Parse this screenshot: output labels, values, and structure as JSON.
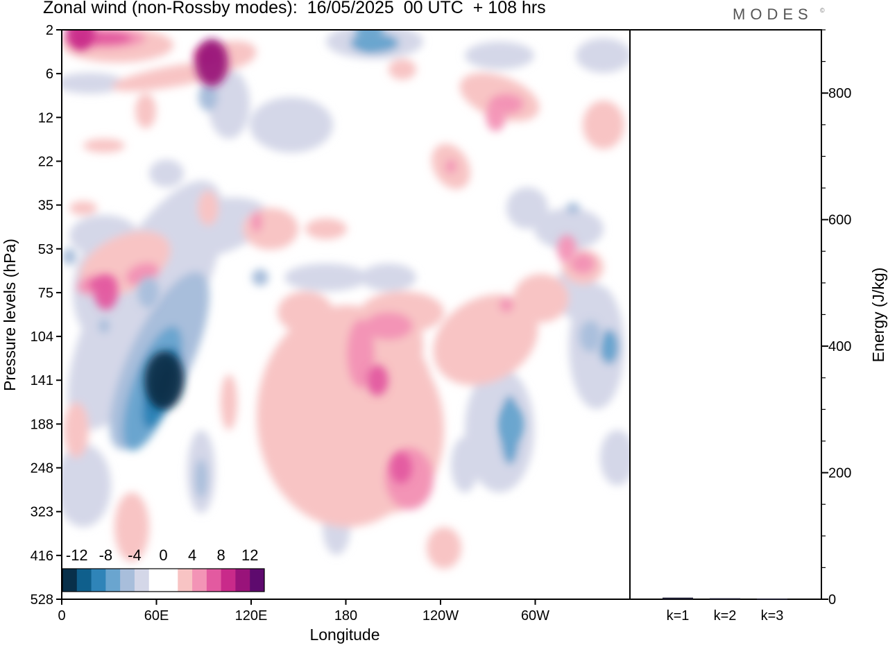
{
  "brand": {
    "name": "MODES",
    "mark": "©"
  },
  "colors": {
    "scale": [
      "#08304a",
      "#0f5f8c",
      "#2f84b8",
      "#6aa5cf",
      "#a8bedb",
      "#d4d7e8",
      "#ffffff",
      "#ffffff",
      "#f8c4c4",
      "#f394b6",
      "#e35aa0",
      "#c92a8a",
      "#99137a",
      "#5e0a6e"
    ]
  },
  "chart_data": {
    "type": "heatmap",
    "title": "Zonal wind (non-Rossby modes):  16/05/2025  00 UTC  + 108 hrs",
    "xlabel": "Longitude",
    "ylabel": "Pressure levels (hPa)",
    "x_ticks": [
      "0",
      "60E",
      "120E",
      "180",
      "120W",
      "60W"
    ],
    "y_ticks": [
      "2",
      "6",
      "12",
      "22",
      "35",
      "53",
      "75",
      "104",
      "141",
      "188",
      "248",
      "323",
      "416",
      "528"
    ],
    "colorbar": {
      "tick_labels": [
        "-12",
        "-8",
        "-4",
        "0",
        "4",
        "8",
        "12"
      ],
      "levels": [
        -14,
        -12,
        -10,
        -8,
        -6,
        -4,
        -2,
        0,
        2,
        4,
        6,
        8,
        10,
        12,
        14
      ]
    },
    "features": [
      {
        "lon": 65,
        "level": 141,
        "value": -14
      },
      {
        "lon": 55,
        "level": 75,
        "value": -6
      },
      {
        "lon": 195,
        "level": 2,
        "value": -8
      },
      {
        "lon": 285,
        "level": 188,
        "value": -7
      },
      {
        "lon": 335,
        "level": 104,
        "value": -6
      },
      {
        "lon": 12,
        "level": 2,
        "value": 9
      },
      {
        "lon": 95,
        "level": 5,
        "value": 11
      },
      {
        "lon": 28,
        "level": 75,
        "value": 7
      },
      {
        "lon": 200,
        "level": 141,
        "value": 6
      },
      {
        "lon": 215,
        "level": 248,
        "value": 6
      },
      {
        "lon": 275,
        "level": 12,
        "value": 5
      },
      {
        "lon": 320,
        "level": 53,
        "value": 5
      }
    ],
    "energy_panel": {
      "type": "bar",
      "ylabel": "Energy (J/kg)",
      "ylim": [
        0,
        900
      ],
      "y_ticks": [
        "0",
        "200",
        "400",
        "600",
        "800"
      ],
      "categories": [
        "k=1",
        "k=2",
        "k=3"
      ],
      "values": [
        2.5,
        1.5,
        1.0
      ]
    }
  }
}
